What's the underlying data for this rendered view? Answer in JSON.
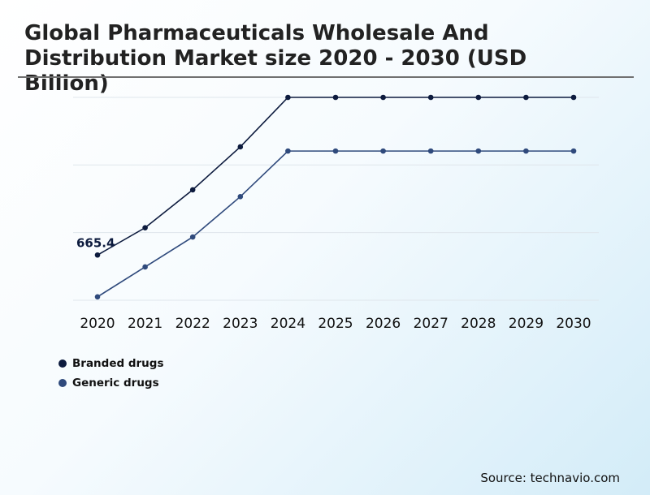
{
  "title": "Global Pharmaceuticals Wholesale And Distribution Market size 2020 - 2030 (USD Billion)",
  "source": "Source: technavio.com",
  "chart_data": {
    "type": "line",
    "title": "Global Pharmaceuticals Wholesale And Distribution Market size 2020 - 2030 (USD Billion)",
    "x": [
      "2020",
      "2021",
      "2022",
      "2023",
      "2024",
      "2025",
      "2026",
      "2027",
      "2028",
      "2029",
      "2030"
    ],
    "series": [
      {
        "name": "Branded drugs",
        "color": "#0d1b3e",
        "values": [
          665.4,
          708.4,
          768.2,
          835.9,
          913.9,
          913.9,
          913.9,
          913.9,
          913.9,
          913.9,
          913.9
        ]
      },
      {
        "name": "Generic drugs",
        "color": "#2f4a7c",
        "values": [
          599.5,
          646.6,
          693.8,
          757.4,
          829.3,
          829.3,
          829.3,
          829.3,
          829.3,
          829.3,
          829.3
        ]
      }
    ],
    "data_labels": [
      {
        "series": 0,
        "index": 0,
        "text": "665.4"
      }
    ],
    "ylim": [
      594.1,
      913.9
    ],
    "y_ticks_labeled": false,
    "grid": "horizontal",
    "legend_position": "bottom-left"
  }
}
